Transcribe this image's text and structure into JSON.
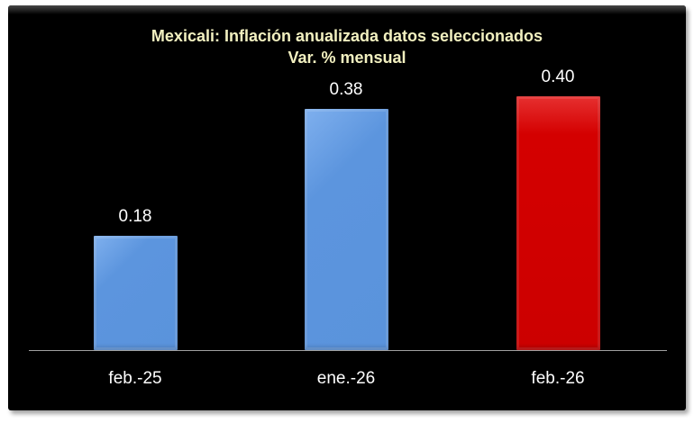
{
  "chart_data": {
    "type": "bar",
    "title": "Mexicali: Inflación anualizada  datos seleccionados",
    "subtitle": "Var. % mensual",
    "categories": [
      "feb.-25",
      "ene.-26",
      "feb.-26"
    ],
    "values": [
      0.18,
      0.38,
      0.4
    ],
    "value_labels": [
      "0.18",
      "0.38",
      "0.40"
    ],
    "bar_colors": [
      "#5a93dc",
      "#5a93dc",
      "#cc0000"
    ],
    "xlabel": "",
    "ylabel": "",
    "ylim": [
      0,
      0.48
    ],
    "grid": false,
    "legend": "none",
    "background": "#000000"
  },
  "title_line1": "Mexicali: Inflación anualizada  datos seleccionados",
  "title_line2": "Var. % mensual"
}
